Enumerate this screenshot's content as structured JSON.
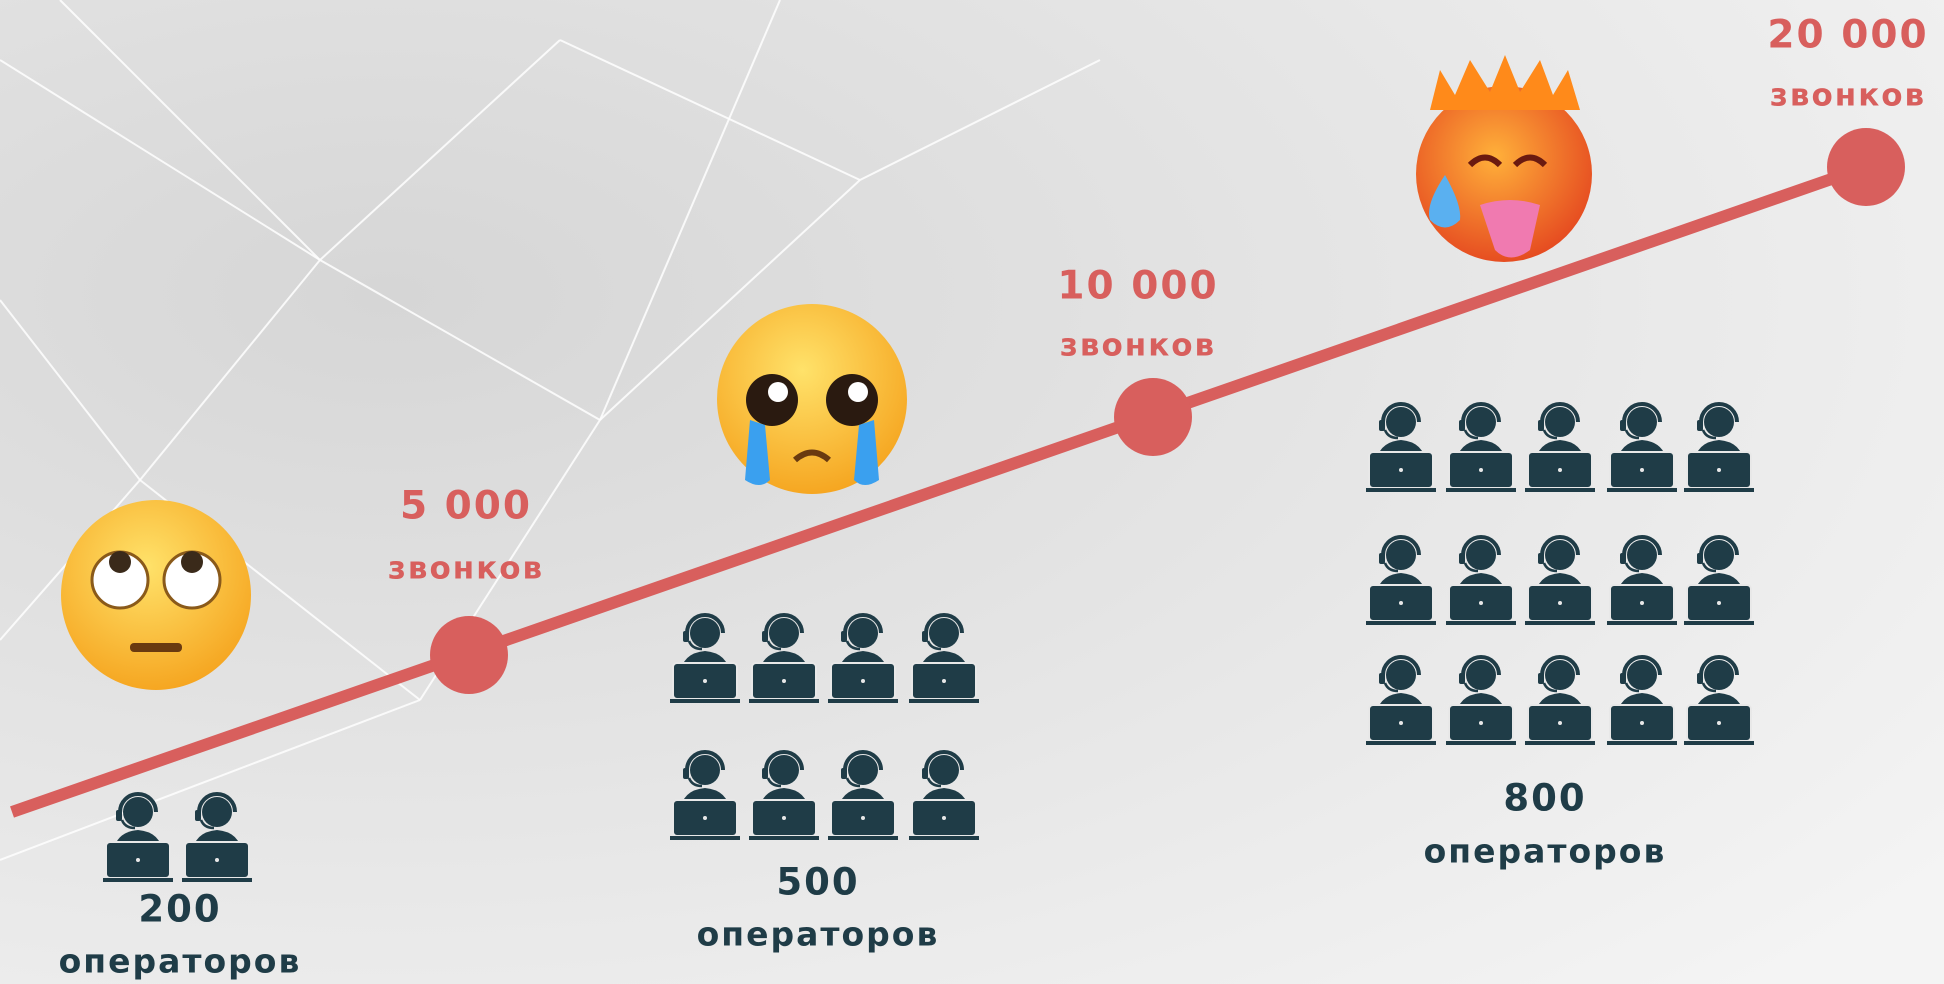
{
  "milestones": [
    {
      "calls": "5 000",
      "unit": "звонков"
    },
    {
      "calls": "10 000",
      "unit": "звонков"
    },
    {
      "calls": "20 000",
      "unit": "звонков"
    }
  ],
  "teams": [
    {
      "count": "200",
      "unit": "операторов"
    },
    {
      "count": "500",
      "unit": "операторов"
    },
    {
      "count": "800",
      "unit": "операторов"
    }
  ]
}
